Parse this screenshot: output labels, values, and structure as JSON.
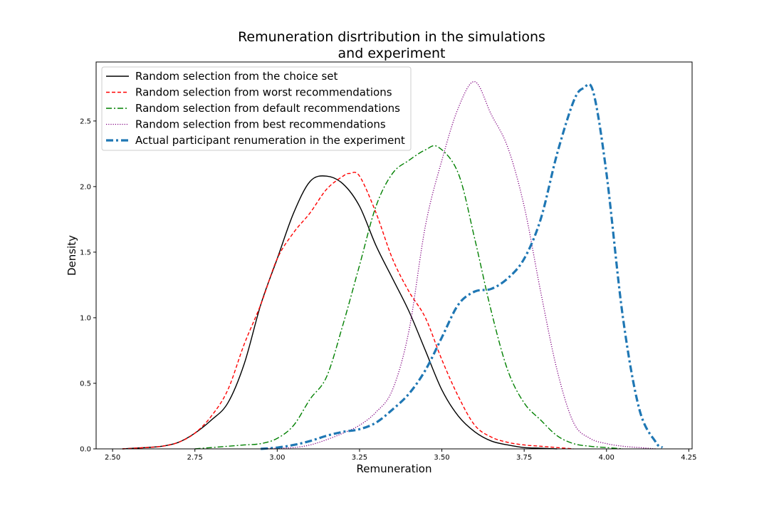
{
  "chart_data": {
    "type": "line",
    "title": [
      "Remuneration disrtribution in the simulations",
      "and experiment"
    ],
    "xlabel": "Remuneration",
    "ylabel": "Density",
    "xlim": [
      2.45,
      4.26
    ],
    "ylim": [
      0,
      2.95
    ],
    "xticks": [
      2.5,
      2.75,
      3.0,
      3.25,
      3.5,
      3.75,
      4.0,
      4.25
    ],
    "xtick_labels": [
      "2.50",
      "2.75",
      "3.00",
      "3.25",
      "3.50",
      "3.75",
      "4.00",
      "4.25"
    ],
    "yticks": [
      0,
      0.5,
      1.0,
      1.5,
      2.0,
      2.5
    ],
    "ytick_labels": [
      "0.0",
      "0.5",
      "1.0",
      "1.5",
      "2.0",
      "2.5"
    ],
    "grid": false,
    "legend_position": "top-left",
    "series": [
      {
        "name": "Random selection from the choice set",
        "color": "#000000",
        "style": "solid",
        "x": [
          2.53,
          2.6,
          2.65,
          2.7,
          2.75,
          2.8,
          2.85,
          2.9,
          2.95,
          3.0,
          3.05,
          3.1,
          3.15,
          3.2,
          3.25,
          3.3,
          3.35,
          3.4,
          3.45,
          3.5,
          3.55,
          3.6,
          3.65,
          3.7,
          3.75,
          3.8,
          3.85
        ],
        "y": [
          0.0,
          0.01,
          0.02,
          0.05,
          0.12,
          0.22,
          0.35,
          0.65,
          1.1,
          1.45,
          1.8,
          2.04,
          2.08,
          2.02,
          1.85,
          1.55,
          1.3,
          1.05,
          0.75,
          0.45,
          0.25,
          0.13,
          0.06,
          0.03,
          0.01,
          0.005,
          0.0
        ]
      },
      {
        "name": "Random selection from worst recommendations",
        "color": "#ff0000",
        "style": "dashed",
        "x": [
          2.53,
          2.6,
          2.65,
          2.7,
          2.75,
          2.8,
          2.85,
          2.9,
          2.95,
          3.0,
          3.05,
          3.1,
          3.15,
          3.2,
          3.22,
          3.25,
          3.3,
          3.35,
          3.4,
          3.45,
          3.5,
          3.55,
          3.6,
          3.65,
          3.7,
          3.75,
          3.8,
          3.85,
          3.9
        ],
        "y": [
          0.0,
          0.01,
          0.02,
          0.05,
          0.12,
          0.25,
          0.45,
          0.8,
          1.1,
          1.45,
          1.65,
          1.8,
          1.98,
          2.08,
          2.1,
          2.08,
          1.8,
          1.45,
          1.2,
          1.0,
          0.68,
          0.4,
          0.18,
          0.09,
          0.05,
          0.03,
          0.02,
          0.01,
          0.0
        ]
      },
      {
        "name": "Random selection from default recommendations",
        "color": "#008000",
        "style": "dashdot",
        "x": [
          2.75,
          2.8,
          2.85,
          2.9,
          2.95,
          3.0,
          3.05,
          3.1,
          3.15,
          3.2,
          3.25,
          3.3,
          3.35,
          3.4,
          3.45,
          3.49,
          3.55,
          3.6,
          3.65,
          3.7,
          3.75,
          3.8,
          3.85,
          3.9,
          3.95,
          4.0,
          4.05
        ],
        "y": [
          0.0,
          0.01,
          0.02,
          0.03,
          0.04,
          0.08,
          0.18,
          0.38,
          0.55,
          0.95,
          1.4,
          1.85,
          2.1,
          2.2,
          2.28,
          2.3,
          2.1,
          1.6,
          1.05,
          0.6,
          0.35,
          0.22,
          0.1,
          0.04,
          0.02,
          0.01,
          0.0
        ]
      },
      {
        "name": "Random selection from best recommendations",
        "color": "#800080",
        "style": "dotted",
        "x": [
          2.95,
          3.0,
          3.05,
          3.1,
          3.15,
          3.2,
          3.25,
          3.3,
          3.35,
          3.4,
          3.45,
          3.5,
          3.55,
          3.6,
          3.65,
          3.7,
          3.75,
          3.8,
          3.85,
          3.9,
          3.95,
          4.0,
          4.05,
          4.1,
          4.15
        ],
        "y": [
          0.0,
          0.005,
          0.01,
          0.03,
          0.07,
          0.12,
          0.18,
          0.28,
          0.45,
          0.9,
          1.7,
          2.2,
          2.6,
          2.8,
          2.55,
          2.3,
          1.85,
          1.2,
          0.6,
          0.2,
          0.08,
          0.04,
          0.02,
          0.01,
          0.0
        ]
      },
      {
        "name": "Actual participant renumeration in the experiment",
        "color": "#1f77b4",
        "style": "thick-dashdot",
        "x": [
          2.95,
          3.0,
          3.05,
          3.1,
          3.15,
          3.2,
          3.25,
          3.3,
          3.35,
          3.4,
          3.45,
          3.5,
          3.55,
          3.6,
          3.65,
          3.7,
          3.75,
          3.8,
          3.85,
          3.9,
          3.93,
          3.96,
          4.0,
          4.05,
          4.1,
          4.15,
          4.17
        ],
        "y": [
          0.0,
          0.01,
          0.03,
          0.06,
          0.1,
          0.13,
          0.15,
          0.2,
          0.3,
          0.42,
          0.6,
          0.85,
          1.1,
          1.2,
          1.22,
          1.3,
          1.45,
          1.75,
          2.25,
          2.65,
          2.75,
          2.72,
          2.1,
          1.0,
          0.3,
          0.05,
          0.01
        ]
      }
    ]
  }
}
